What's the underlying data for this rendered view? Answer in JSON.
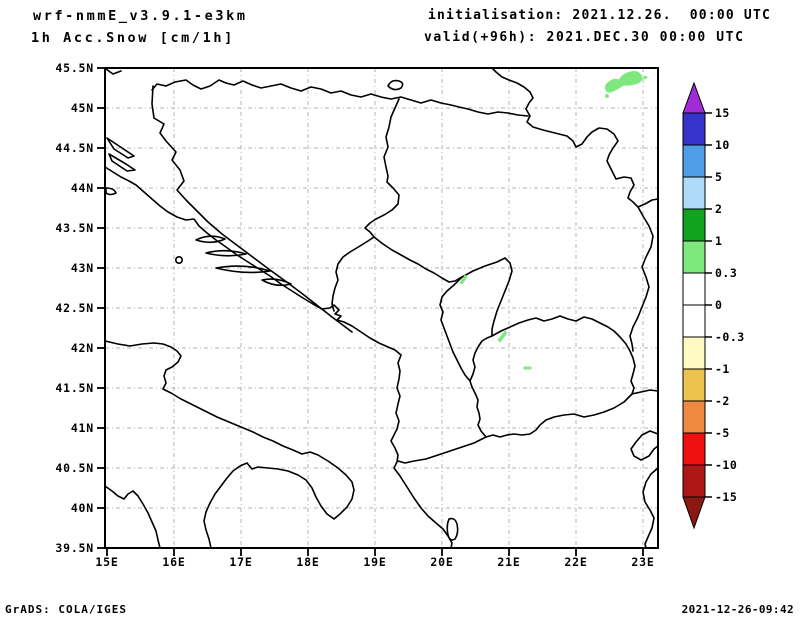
{
  "header": {
    "model": "wrf-nmmE_v3.9.1-e3km",
    "variable": "1h Acc.Snow [cm/1h]",
    "init": "initialisation: 2021.12.26.  00:00 UTC",
    "valid": "valid(+96h): 2021.DEC.30 00:00 UTC"
  },
  "footer": {
    "credit": "GrADS: COLA/IGES",
    "timestamp": "2021-12-26-09:42"
  },
  "map": {
    "lat_tick_labels": [
      "45.5N",
      "45N",
      "44.5N",
      "44N",
      "43.5N",
      "43N",
      "42.5N",
      "42N",
      "41.5N",
      "41N",
      "40.5N",
      "40N",
      "39.5N"
    ],
    "lon_tick_labels": [
      "15E",
      "16E",
      "17E",
      "18E",
      "19E",
      "20E",
      "21E",
      "22E",
      "23E"
    ]
  },
  "palette": {
    "snow_patch": "#7ee77e",
    "grid_line": "#b3b3b3",
    "map_outline": "#000000"
  },
  "colorbar": {
    "tick_labels": [
      "15",
      "10",
      "5",
      "2",
      "1",
      "0.3",
      "0",
      "-0.3",
      "-1",
      "-2",
      "-5",
      "-10",
      "-15"
    ],
    "segment_colors": [
      "#3434cc",
      "#4f9ee8",
      "#aedcf8",
      "#11a21e",
      "#7ee77e",
      "#ffffff",
      "#ffffff",
      "#fffac4",
      "#eec24e",
      "#f08a42",
      "#ef1010",
      "#b01616"
    ],
    "over_color": "#a02cd8",
    "under_color": "#8c1812"
  },
  "chart_data": {
    "type": "map",
    "title": "1h Acc.Snow [cm/1h]",
    "model_run": "wrf-nmmE_v3.9.1-e3km",
    "initialisation": "2021.12.26. 00:00 UTC",
    "valid": "+96h = 2021.DEC.30 00:00 UTC",
    "units": "cm/1h",
    "lon_range": [
      15,
      23
    ],
    "lat_range": [
      39.5,
      45.5
    ],
    "grid": "on (0.5 deg lat / 1 deg lon, dash-dot gray)",
    "legend_position": "right vertical colorbar with over/under arrows",
    "levels": [
      -15,
      -10,
      -5,
      -2,
      -1,
      -0.3,
      0,
      0.3,
      1,
      2,
      5,
      10,
      15
    ],
    "snow_patches": [
      {
        "lon": [
          22.5,
          23.1
        ],
        "lat": [
          45.15,
          45.45
        ],
        "value_cm_per_h": "0.3-1"
      },
      {
        "lon": 20.3,
        "lat": 42.9,
        "value_cm_per_h": "0.3-1"
      },
      {
        "lon": 20.9,
        "lat": 42.15,
        "value_cm_per_h": "0.3-1"
      },
      {
        "lon": 21.3,
        "lat": 41.75,
        "value_cm_per_h": "0.3-1"
      }
    ]
  }
}
